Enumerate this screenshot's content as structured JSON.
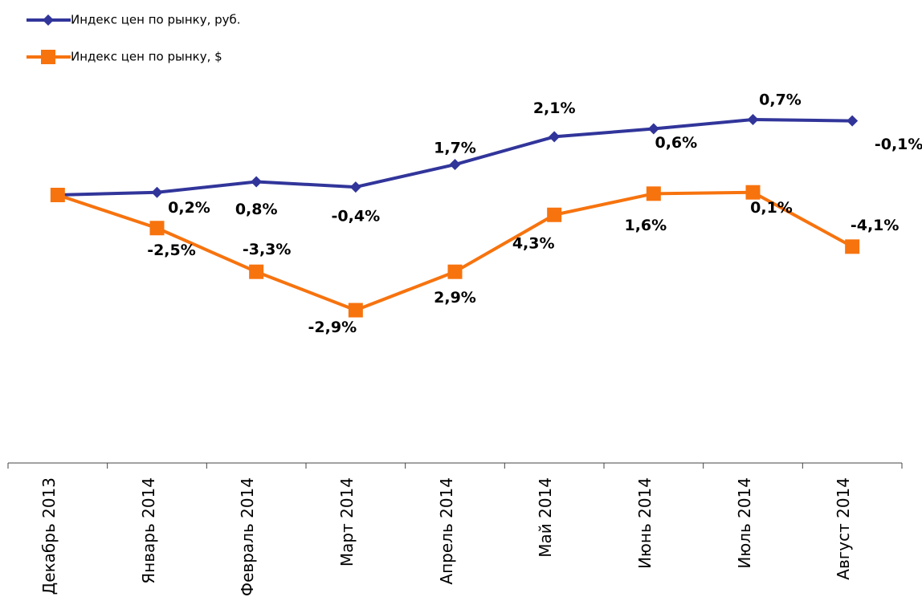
{
  "chart_data": {
    "type": "line",
    "categories": [
      "Декабрь 2013",
      "Январь 2014",
      "Февраль 2014",
      "Март 2014",
      "Апрель 2014",
      "Май 2014",
      "Июнь 2014",
      "Июль 2014",
      "Август 2014"
    ],
    "series": [
      {
        "name": "Индекс цен по рынку, руб.",
        "color": "#31359a",
        "marker": "diamond",
        "values": [
          0,
          0.2,
          0.8,
          -0.4,
          1.7,
          2.1,
          0.6,
          0.7,
          -0.1
        ],
        "value_labels": [
          null,
          "0,2%",
          "0,8%",
          "-0,4%",
          "1,7%",
          "2,1%",
          "0,6%",
          "0,7%",
          "-0,1%"
        ]
      },
      {
        "name": "Индекс цен по рынку, $",
        "color": "#f7730e",
        "marker": "square",
        "values": [
          0,
          -2.5,
          -3.3,
          -2.9,
          2.9,
          4.3,
          1.6,
          0.1,
          -4.1
        ],
        "value_labels": [
          null,
          "-2,5%",
          "-3,3%",
          "-2,9%",
          "2,9%",
          "4,3%",
          "1,6%",
          "0,1%",
          "-4,1%"
        ]
      }
    ],
    "cumulative": true,
    "legend": "top-left"
  }
}
